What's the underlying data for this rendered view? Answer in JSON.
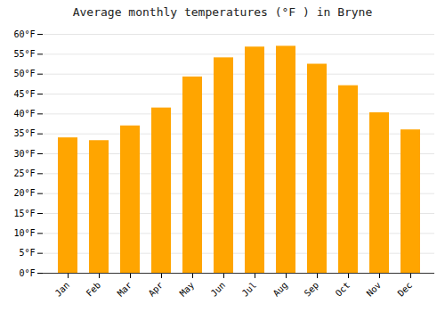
{
  "chart_data": {
    "type": "bar",
    "title": "Average monthly temperatures (°F ) in Bryne",
    "categories": [
      "Jan",
      "Feb",
      "Mar",
      "Apr",
      "May",
      "Jun",
      "Jul",
      "Aug",
      "Sep",
      "Oct",
      "Nov",
      "Dec"
    ],
    "values": [
      34.0,
      33.3,
      37.0,
      41.5,
      49.3,
      54.1,
      56.8,
      57.0,
      52.5,
      47.1,
      40.3,
      36.0
    ],
    "color": "#FFA500",
    "ylim": [
      0,
      60
    ],
    "yticks": [
      {
        "value": 0,
        "label": "0°F"
      },
      {
        "value": 5,
        "label": "5°F"
      },
      {
        "value": 10,
        "label": "10°F"
      },
      {
        "value": 15,
        "label": "15°F"
      },
      {
        "value": 20,
        "label": "20°F"
      },
      {
        "value": 25,
        "label": "25°F"
      },
      {
        "value": 30,
        "label": "30°F"
      },
      {
        "value": 35,
        "label": "35°F"
      },
      {
        "value": 40,
        "label": "40°F"
      },
      {
        "value": 45,
        "label": "45°F"
      },
      {
        "value": 50,
        "label": "50°F"
      },
      {
        "value": 55,
        "label": "55°F"
      },
      {
        "value": 60,
        "label": "60°F"
      }
    ],
    "grid": true
  }
}
